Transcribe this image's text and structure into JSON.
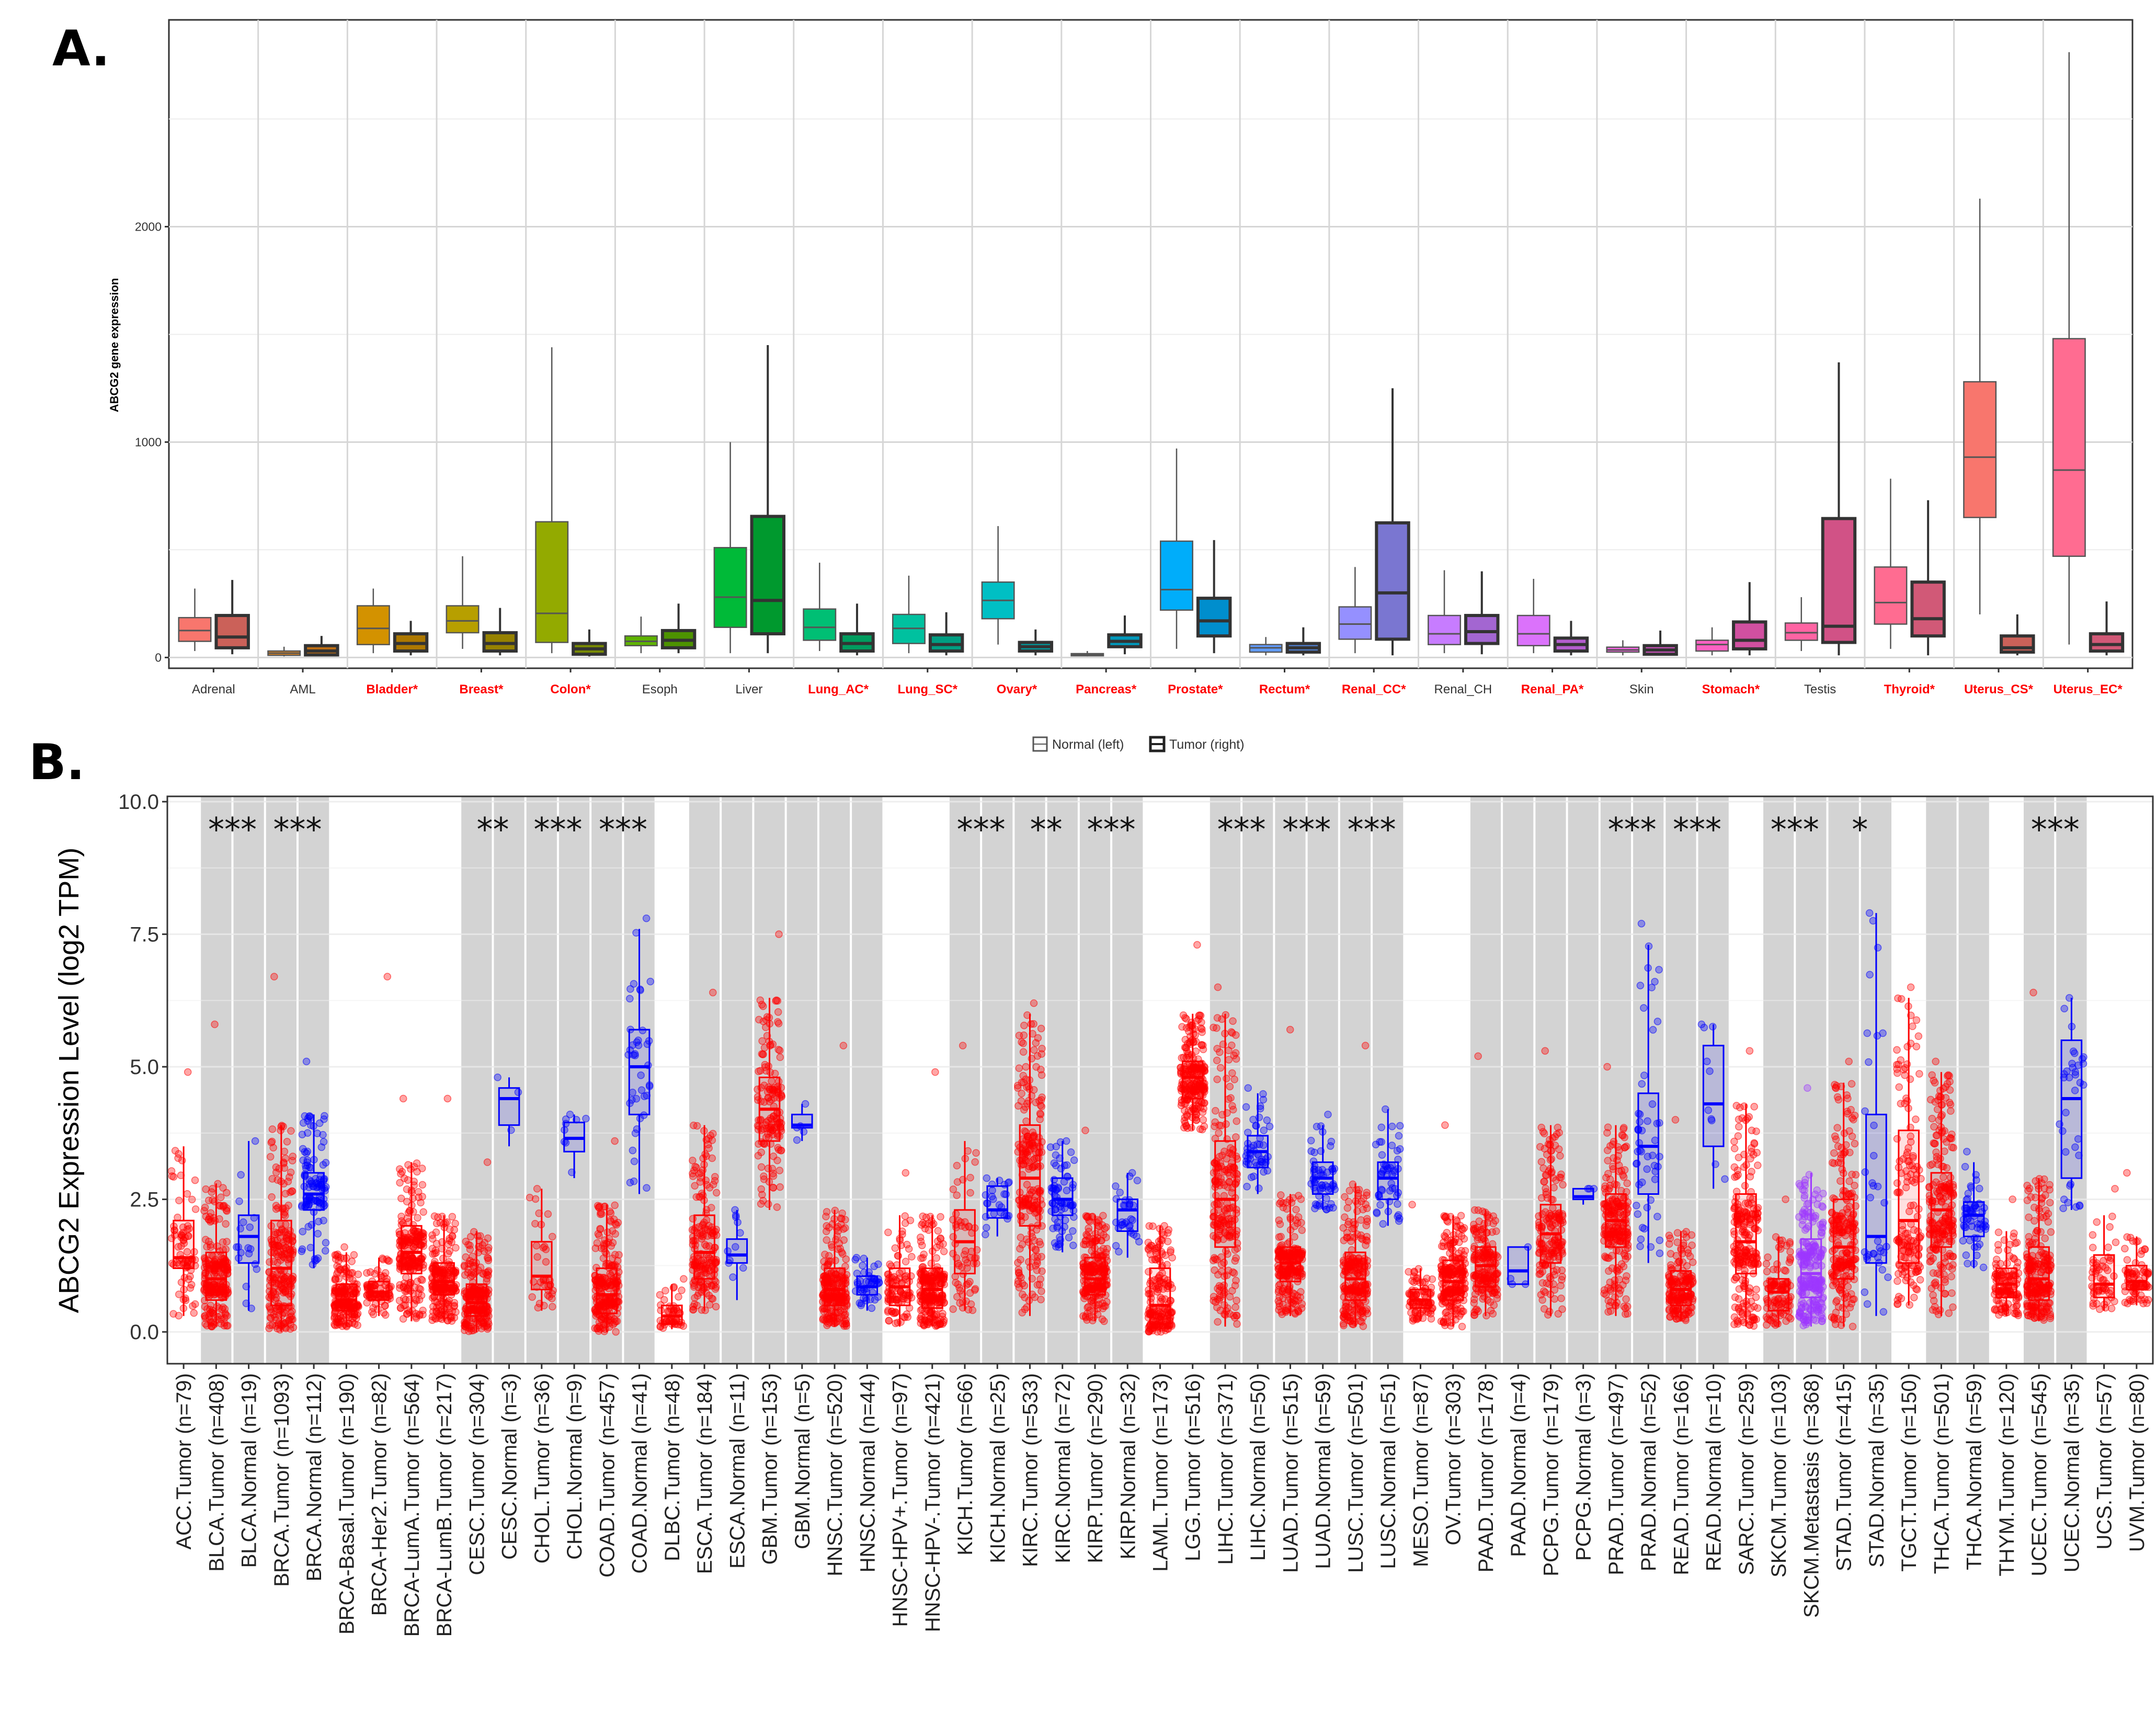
{
  "panel_a": {
    "label": "A.",
    "chart_data": {
      "type": "boxplot",
      "ylabel": "ABCG2 gene expression",
      "ylim": [
        -50,
        2960
      ],
      "yticks": [
        0,
        1000,
        2000
      ],
      "legend": {
        "position": "bottom",
        "items": [
          "Normal (left)",
          "Tumor (right)"
        ]
      },
      "categories": [
        "Adrenal",
        "AML",
        "Bladder*",
        "Breast*",
        "Colon*",
        "Esoph",
        "Liver",
        "Lung_AC*",
        "Lung_SC*",
        "Ovary*",
        "Pancreas*",
        "Prostate*",
        "Rectum*",
        "Renal_CC*",
        "Renal_CH",
        "Renal_PA*",
        "Skin",
        "Stomach*",
        "Testis",
        "Thyroid*",
        "Uterus_CS*",
        "Uterus_EC*"
      ],
      "significant": [
        false,
        false,
        true,
        true,
        true,
        false,
        false,
        true,
        true,
        true,
        true,
        true,
        true,
        true,
        false,
        true,
        false,
        true,
        false,
        true,
        true,
        true
      ],
      "colors": [
        "#F8766D",
        "#E7861A",
        "#D39200",
        "#B79F00",
        "#93AA00",
        "#5EB300",
        "#00BA38",
        "#00BF74",
        "#00C19F",
        "#00BFC4",
        "#00B9E3",
        "#00ADFA",
        "#619CFF",
        "#9590FF",
        "#C77CFF",
        "#DB72FB",
        "#F564E3",
        "#FF61C3",
        "#FF64A3",
        "#FF6C91",
        "#F8766D",
        "#FF6C91"
      ],
      "normal": [
        [
          30,
          75,
          125,
          185,
          320
        ],
        [
          5,
          10,
          20,
          30,
          50
        ],
        [
          20,
          60,
          135,
          240,
          320
        ],
        [
          40,
          115,
          170,
          240,
          470
        ],
        [
          20,
          70,
          205,
          630,
          1440
        ],
        [
          20,
          55,
          75,
          100,
          190
        ],
        [
          20,
          140,
          280,
          510,
          1000
        ],
        [
          30,
          80,
          140,
          225,
          440
        ],
        [
          20,
          65,
          135,
          200,
          380
        ],
        [
          60,
          180,
          265,
          350,
          610
        ],
        [
          5,
          8,
          12,
          18,
          30
        ],
        [
          40,
          220,
          315,
          540,
          970
        ],
        [
          10,
          25,
          45,
          60,
          95
        ],
        [
          20,
          85,
          155,
          235,
          420
        ],
        [
          20,
          60,
          110,
          195,
          405
        ],
        [
          20,
          55,
          110,
          195,
          365
        ],
        [
          10,
          25,
          35,
          48,
          80
        ],
        [
          10,
          30,
          60,
          80,
          140
        ],
        [
          30,
          80,
          115,
          160,
          280
        ],
        [
          40,
          155,
          255,
          420,
          830
        ],
        [
          200,
          650,
          930,
          1280,
          2130
        ],
        [
          60,
          470,
          870,
          1480,
          2810
        ]
      ],
      "tumor": [
        [
          15,
          45,
          95,
          195,
          360
        ],
        [
          5,
          12,
          30,
          55,
          100
        ],
        [
          10,
          30,
          65,
          110,
          170
        ],
        [
          10,
          30,
          65,
          115,
          230
        ],
        [
          5,
          15,
          40,
          65,
          130
        ],
        [
          20,
          45,
          80,
          125,
          250
        ],
        [
          20,
          110,
          265,
          655,
          1450
        ],
        [
          10,
          30,
          65,
          110,
          250
        ],
        [
          10,
          30,
          60,
          105,
          210
        ],
        [
          10,
          30,
          50,
          70,
          130
        ],
        [
          15,
          50,
          75,
          105,
          195
        ],
        [
          20,
          100,
          170,
          275,
          545
        ],
        [
          10,
          25,
          45,
          65,
          140
        ],
        [
          10,
          85,
          300,
          625,
          1250
        ],
        [
          15,
          65,
          120,
          195,
          400
        ],
        [
          10,
          30,
          60,
          90,
          170
        ],
        [
          10,
          15,
          35,
          55,
          125
        ],
        [
          10,
          40,
          80,
          165,
          350
        ],
        [
          10,
          70,
          145,
          645,
          1370
        ],
        [
          10,
          100,
          180,
          350,
          730
        ],
        [
          10,
          25,
          45,
          100,
          200
        ],
        [
          10,
          30,
          60,
          110,
          260
        ]
      ]
    }
  },
  "panel_b": {
    "label": "B.",
    "chart_data": {
      "type": "boxplot",
      "ylabel": "ABCG2 Expression Level (log2 TPM)",
      "ylim": [
        -0.6,
        10.1
      ],
      "yticks": [
        0.0,
        2.5,
        5.0,
        7.5,
        10.0
      ],
      "ytick_labels": [
        "0.0",
        "2.5",
        "5.0",
        "7.5",
        "10.0"
      ],
      "labels": [
        "ACC.Tumor (n=79)",
        "BLCA.Tumor (n=408)",
        "BLCA.Normal (n=19)",
        "BRCA.Tumor (n=1093)",
        "BRCA.Normal (n=112)",
        "BRCA-Basal.Tumor (n=190)",
        "BRCA-Her2.Tumor (n=82)",
        "BRCA-LumA.Tumor (n=564)",
        "BRCA-LumB.Tumor (n=217)",
        "CESC.Tumor (n=304)",
        "CESC.Normal (n=3)",
        "CHOL.Tumor (n=36)",
        "CHOL.Normal (n=9)",
        "COAD.Tumor (n=457)",
        "COAD.Normal (n=41)",
        "DLBC.Tumor (n=48)",
        "ESCA.Tumor (n=184)",
        "ESCA.Normal (n=11)",
        "GBM.Tumor (n=153)",
        "GBM.Normal (n=5)",
        "HNSC.Tumor (n=520)",
        "HNSC.Normal (n=44)",
        "HNSC-HPV+.Tumor (n=97)",
        "HNSC-HPV-.Tumor (n=421)",
        "KICH.Tumor (n=66)",
        "KICH.Normal (n=25)",
        "KIRC.Tumor (n=533)",
        "KIRC.Normal (n=72)",
        "KIRP.Tumor (n=290)",
        "KIRP.Normal (n=32)",
        "LAML.Tumor (n=173)",
        "LGG.Tumor (n=516)",
        "LIHC.Tumor (n=371)",
        "LIHC.Normal (n=50)",
        "LUAD.Tumor (n=515)",
        "LUAD.Normal (n=59)",
        "LUSC.Tumor (n=501)",
        "LUSC.Normal (n=51)",
        "MESO.Tumor (n=87)",
        "OV.Tumor (n=303)",
        "PAAD.Tumor (n=178)",
        "PAAD.Normal (n=4)",
        "PCPG.Tumor (n=179)",
        "PCPG.Normal (n=3)",
        "PRAD.Tumor (n=497)",
        "PRAD.Normal (n=52)",
        "READ.Tumor (n=166)",
        "READ.Normal (n=10)",
        "SARC.Tumor (n=259)",
        "SKCM.Tumor (n=103)",
        "SKCM.Metastasis (n=368)",
        "STAD.Tumor (n=415)",
        "STAD.Normal (n=35)",
        "TGCT.Tumor (n=150)",
        "THCA.Tumor (n=501)",
        "THCA.Normal (n=59)",
        "THYM.Tumor (n=120)",
        "UCEC.Tumor (n=545)",
        "UCEC.Normal (n=35)",
        "UCS.Tumor (n=57)",
        "UVM.Tumor (n=80)"
      ],
      "kind": [
        "T",
        "T",
        "N",
        "T",
        "N",
        "T",
        "T",
        "T",
        "T",
        "T",
        "N",
        "T",
        "N",
        "T",
        "N",
        "T",
        "T",
        "N",
        "T",
        "N",
        "T",
        "N",
        "T",
        "T",
        "T",
        "N",
        "T",
        "N",
        "T",
        "N",
        "T",
        "T",
        "T",
        "N",
        "T",
        "N",
        "T",
        "N",
        "T",
        "T",
        "T",
        "N",
        "T",
        "N",
        "T",
        "N",
        "T",
        "N",
        "T",
        "T",
        "M",
        "T",
        "N",
        "T",
        "T",
        "N",
        "T",
        "T",
        "N",
        "T",
        "T"
      ],
      "boxes": [
        [
          0.3,
          1.2,
          1.4,
          2.1,
          3.5
        ],
        [
          0.1,
          0.6,
          1.0,
          1.5,
          2.8
        ],
        [
          0.4,
          1.3,
          1.8,
          2.2,
          3.6
        ],
        [
          0.0,
          0.5,
          1.2,
          2.1,
          3.9
        ],
        [
          1.2,
          2.3,
          2.6,
          3.0,
          4.1
        ],
        [
          0.1,
          0.4,
          0.6,
          0.9,
          1.5
        ],
        [
          0.3,
          0.6,
          0.75,
          0.95,
          1.4
        ],
        [
          0.2,
          1.1,
          1.5,
          2.0,
          3.2
        ],
        [
          0.2,
          0.7,
          0.95,
          1.3,
          2.2
        ],
        [
          0.0,
          0.3,
          0.55,
          0.9,
          1.9
        ],
        [
          3.5,
          3.9,
          4.4,
          4.6,
          4.8
        ],
        [
          0.4,
          0.8,
          1.05,
          1.7,
          2.7
        ],
        [
          2.9,
          3.4,
          3.65,
          3.95,
          4.1
        ],
        [
          0.0,
          0.35,
          0.7,
          1.2,
          2.4
        ],
        [
          2.6,
          4.1,
          5.0,
          5.7,
          7.6
        ],
        [
          0.05,
          0.15,
          0.3,
          0.5,
          0.9
        ],
        [
          0.4,
          1.0,
          1.5,
          2.2,
          3.9
        ],
        [
          0.6,
          1.3,
          1.45,
          1.75,
          2.3
        ],
        [
          2.3,
          3.6,
          4.2,
          4.8,
          6.3
        ],
        [
          3.6,
          3.85,
          3.9,
          4.1,
          4.3
        ],
        [
          0.1,
          0.5,
          0.8,
          1.2,
          2.3
        ],
        [
          0.4,
          0.7,
          0.85,
          1.05,
          1.4
        ],
        [
          0.1,
          0.5,
          0.85,
          1.2,
          2.2
        ],
        [
          0.1,
          0.45,
          0.8,
          1.2,
          2.2
        ],
        [
          0.4,
          1.1,
          1.7,
          2.3,
          3.6
        ],
        [
          1.8,
          2.15,
          2.3,
          2.75,
          2.9
        ],
        [
          0.3,
          2.0,
          2.9,
          3.9,
          6.0
        ],
        [
          1.5,
          2.2,
          2.5,
          2.9,
          3.6
        ],
        [
          0.2,
          0.7,
          1.0,
          1.4,
          2.2
        ],
        [
          1.4,
          1.9,
          2.3,
          2.5,
          3.0
        ],
        [
          0.0,
          0.15,
          0.5,
          1.2,
          2.0
        ],
        [
          3.8,
          4.4,
          4.8,
          5.1,
          6.0
        ],
        [
          0.1,
          1.6,
          2.5,
          3.6,
          6.0
        ],
        [
          2.6,
          3.1,
          3.4,
          3.7,
          4.5
        ],
        [
          0.3,
          0.95,
          1.3,
          1.6,
          2.6
        ],
        [
          2.3,
          2.6,
          2.9,
          3.2,
          3.9
        ],
        [
          0.1,
          0.6,
          1.0,
          1.5,
          2.8
        ],
        [
          2.0,
          2.5,
          2.9,
          3.2,
          4.2
        ],
        [
          0.2,
          0.45,
          0.6,
          0.8,
          1.2
        ],
        [
          0.1,
          0.6,
          0.95,
          1.35,
          2.2
        ],
        [
          0.3,
          0.85,
          1.25,
          1.6,
          2.3
        ],
        [
          0.9,
          0.9,
          1.15,
          1.6,
          1.6
        ],
        [
          0.3,
          1.3,
          1.85,
          2.4,
          3.9
        ],
        [
          2.4,
          2.5,
          2.55,
          2.7,
          2.7
        ],
        [
          0.3,
          1.6,
          2.1,
          2.6,
          3.9
        ],
        [
          1.3,
          2.6,
          3.5,
          4.5,
          7.3
        ],
        [
          0.2,
          0.5,
          0.8,
          1.15,
          1.9
        ],
        [
          2.7,
          3.5,
          4.3,
          5.4,
          5.8
        ],
        [
          0.1,
          1.1,
          1.7,
          2.6,
          4.3
        ],
        [
          0.1,
          0.4,
          0.75,
          1.0,
          1.8
        ],
        [
          0.1,
          0.65,
          1.1,
          1.75,
          3.0
        ],
        [
          0.1,
          1.0,
          1.6,
          2.5,
          4.7
        ],
        [
          0.3,
          1.3,
          1.8,
          4.1,
          7.9
        ],
        [
          0.5,
          1.3,
          2.1,
          3.8,
          6.3
        ],
        [
          0.3,
          1.6,
          2.3,
          3.0,
          4.9
        ],
        [
          1.2,
          1.8,
          2.2,
          2.45,
          3.2
        ],
        [
          0.3,
          0.65,
          0.9,
          1.2,
          1.9
        ],
        [
          0.2,
          0.6,
          1.0,
          1.6,
          2.9
        ],
        [
          2.3,
          2.9,
          4.4,
          5.5,
          6.3
        ],
        [
          0.4,
          0.65,
          0.9,
          1.45,
          2.2
        ],
        [
          0.5,
          0.8,
          0.95,
          1.25,
          1.8
        ]
      ],
      "max_points": [
        4.9,
        5.8,
        3.6,
        6.7,
        5.1,
        1.6,
        6.7,
        4.4,
        4.4,
        3.2,
        4.8,
        2.7,
        4.1,
        3.6,
        7.8,
        1.0,
        6.4,
        2.3,
        7.5,
        4.3,
        5.4,
        1.4,
        3.0,
        4.9,
        5.4,
        2.9,
        6.2,
        3.6,
        3.8,
        3.0,
        2.0,
        7.3,
        6.5,
        4.6,
        5.7,
        4.1,
        5.4,
        4.2,
        2.4,
        3.9,
        5.2,
        1.6,
        5.3,
        2.7,
        5.0,
        7.7,
        4.0,
        5.8,
        5.3,
        2.5,
        4.6,
        5.1,
        7.9,
        6.5,
        5.1,
        3.4,
        2.5,
        6.4,
        6.3,
        2.7,
        3.0
      ],
      "shaded": [
        false,
        true,
        true,
        true,
        true,
        false,
        false,
        false,
        false,
        true,
        true,
        true,
        true,
        true,
        true,
        false,
        true,
        true,
        true,
        true,
        true,
        true,
        false,
        false,
        true,
        true,
        true,
        true,
        true,
        true,
        false,
        false,
        true,
        true,
        true,
        true,
        true,
        true,
        false,
        false,
        true,
        true,
        true,
        true,
        true,
        true,
        true,
        true,
        false,
        true,
        true,
        true,
        true,
        false,
        true,
        true,
        false,
        true,
        true,
        false,
        false
      ],
      "annotations": [
        {
          "text": "***",
          "from": 1,
          "to": 2
        },
        {
          "text": "***",
          "from": 3,
          "to": 4
        },
        {
          "text": "**",
          "from": 9,
          "to": 10
        },
        {
          "text": "***",
          "from": 11,
          "to": 12
        },
        {
          "text": "***",
          "from": 13,
          "to": 14
        },
        {
          "text": "***",
          "from": 24,
          "to": 25
        },
        {
          "text": "**",
          "from": 26,
          "to": 27
        },
        {
          "text": "***",
          "from": 28,
          "to": 29
        },
        {
          "text": "***",
          "from": 32,
          "to": 33
        },
        {
          "text": "***",
          "from": 34,
          "to": 35
        },
        {
          "text": "***",
          "from": 36,
          "to": 37
        },
        {
          "text": "***",
          "from": 44,
          "to": 45
        },
        {
          "text": "***",
          "from": 46,
          "to": 47
        },
        {
          "text": "***",
          "from": 49,
          "to": 50
        },
        {
          "text": "*",
          "from": 51,
          "to": 52
        },
        {
          "text": "***",
          "from": 57,
          "to": 58
        }
      ],
      "colors": {
        "tumor": "#FF0000",
        "normal": "#0000FF",
        "metastasis": "#9E36FF"
      }
    }
  }
}
